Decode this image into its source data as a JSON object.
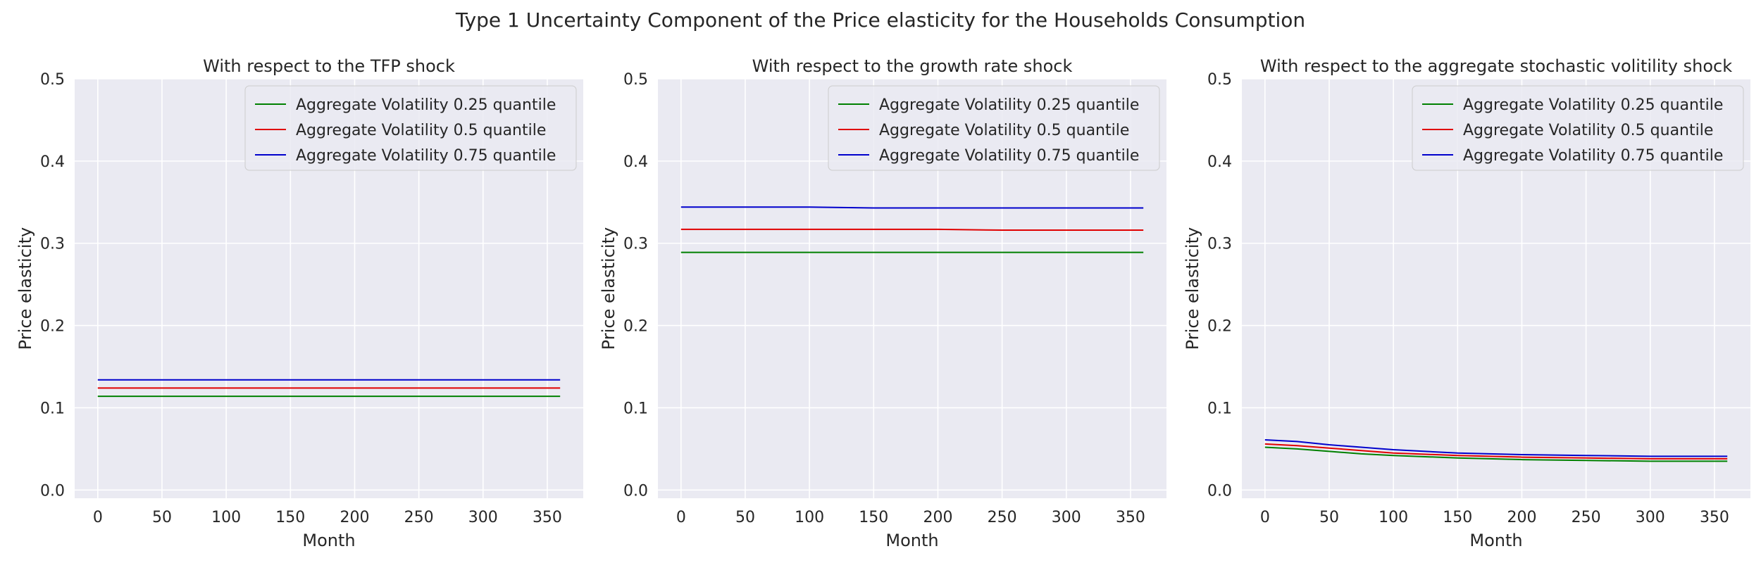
{
  "figure": {
    "suptitle": "Type 1 Uncertainty Component of the Price elasticity for the Households Consumption"
  },
  "colors": {
    "background": "#eaeaf2",
    "grid": "#ffffff",
    "text": "#262626"
  },
  "chart_data": [
    {
      "type": "line",
      "title": "With respect to the TFP shock",
      "xlabel": "Month",
      "ylabel": "Price elasticity",
      "xlim": [
        -18,
        378
      ],
      "ylim": [
        -0.01,
        0.5
      ],
      "xticks": [
        0,
        50,
        100,
        150,
        200,
        250,
        300,
        350
      ],
      "yticks": [
        0.0,
        0.1,
        0.2,
        0.3,
        0.4,
        0.5
      ],
      "ytick_labels": [
        "0.0",
        "0.1",
        "0.2",
        "0.3",
        "0.4",
        "0.5"
      ],
      "grid": true,
      "legend": "top-right",
      "x": [
        0,
        50,
        100,
        150,
        200,
        250,
        300,
        360
      ],
      "series": [
        {
          "name": "Aggregate Volatility 0.25 quantile",
          "color": "#008000",
          "values": [
            0.114,
            0.114,
            0.114,
            0.114,
            0.114,
            0.114,
            0.114,
            0.114
          ]
        },
        {
          "name": "Aggregate Volatility 0.5 quantile",
          "color": "#e00000",
          "values": [
            0.124,
            0.124,
            0.124,
            0.124,
            0.124,
            0.124,
            0.124,
            0.124
          ]
        },
        {
          "name": "Aggregate Volatility 0.75 quantile",
          "color": "#0000cc",
          "values": [
            0.134,
            0.134,
            0.134,
            0.134,
            0.134,
            0.134,
            0.134,
            0.134
          ]
        }
      ]
    },
    {
      "type": "line",
      "title": "With respect to the growth rate shock",
      "xlabel": "Month",
      "ylabel": "Price elasticity",
      "xlim": [
        -18,
        378
      ],
      "ylim": [
        -0.01,
        0.5
      ],
      "xticks": [
        0,
        50,
        100,
        150,
        200,
        250,
        300,
        350
      ],
      "yticks": [
        0.0,
        0.1,
        0.2,
        0.3,
        0.4,
        0.5
      ],
      "ytick_labels": [
        "0.0",
        "0.1",
        "0.2",
        "0.3",
        "0.4",
        "0.5"
      ],
      "grid": true,
      "legend": "top-right",
      "x": [
        0,
        50,
        100,
        150,
        200,
        250,
        300,
        360
      ],
      "series": [
        {
          "name": "Aggregate Volatility 0.25 quantile",
          "color": "#008000",
          "values": [
            0.289,
            0.289,
            0.289,
            0.289,
            0.289,
            0.289,
            0.289,
            0.289
          ]
        },
        {
          "name": "Aggregate Volatility 0.5 quantile",
          "color": "#e00000",
          "values": [
            0.317,
            0.317,
            0.317,
            0.317,
            0.317,
            0.316,
            0.316,
            0.316
          ]
        },
        {
          "name": "Aggregate Volatility 0.75 quantile",
          "color": "#0000cc",
          "values": [
            0.344,
            0.344,
            0.344,
            0.343,
            0.343,
            0.343,
            0.343,
            0.343
          ]
        }
      ]
    },
    {
      "type": "line",
      "title": "With respect to the aggregate stochastic volitility shock",
      "xlabel": "Month",
      "ylabel": "Price elasticity",
      "xlim": [
        -18,
        378
      ],
      "ylim": [
        -0.01,
        0.5
      ],
      "xticks": [
        0,
        50,
        100,
        150,
        200,
        250,
        300,
        350
      ],
      "yticks": [
        0.0,
        0.1,
        0.2,
        0.3,
        0.4,
        0.5
      ],
      "ytick_labels": [
        "0.0",
        "0.1",
        "0.2",
        "0.3",
        "0.4",
        "0.5"
      ],
      "grid": true,
      "legend": "top-right",
      "x": [
        0,
        25,
        50,
        75,
        100,
        150,
        200,
        250,
        300,
        360
      ],
      "series": [
        {
          "name": "Aggregate Volatility 0.25 quantile",
          "color": "#008000",
          "values": [
            0.052,
            0.05,
            0.047,
            0.044,
            0.042,
            0.039,
            0.037,
            0.036,
            0.035,
            0.035
          ]
        },
        {
          "name": "Aggregate Volatility 0.5 quantile",
          "color": "#e00000",
          "values": [
            0.056,
            0.054,
            0.051,
            0.048,
            0.045,
            0.042,
            0.04,
            0.039,
            0.038,
            0.038
          ]
        },
        {
          "name": "Aggregate Volatility 0.75 quantile",
          "color": "#0000cc",
          "values": [
            0.061,
            0.059,
            0.055,
            0.052,
            0.049,
            0.045,
            0.043,
            0.042,
            0.041,
            0.041
          ]
        }
      ]
    }
  ]
}
